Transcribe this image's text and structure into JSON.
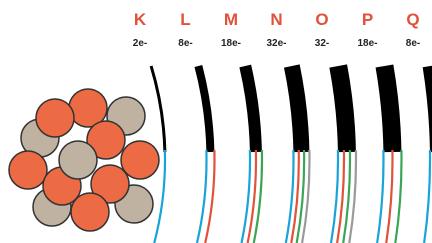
{
  "shells": [
    {
      "letter": "K",
      "electrons": "2e-"
    },
    {
      "letter": "L",
      "electrons": "8e-"
    },
    {
      "letter": "M",
      "electrons": "18e-"
    },
    {
      "letter": "N",
      "electrons": "32e-"
    },
    {
      "letter": "O",
      "electrons": "32-"
    },
    {
      "letter": "P",
      "electrons": "18e-"
    },
    {
      "letter": "Q",
      "electrons": "8e-"
    }
  ]
}
